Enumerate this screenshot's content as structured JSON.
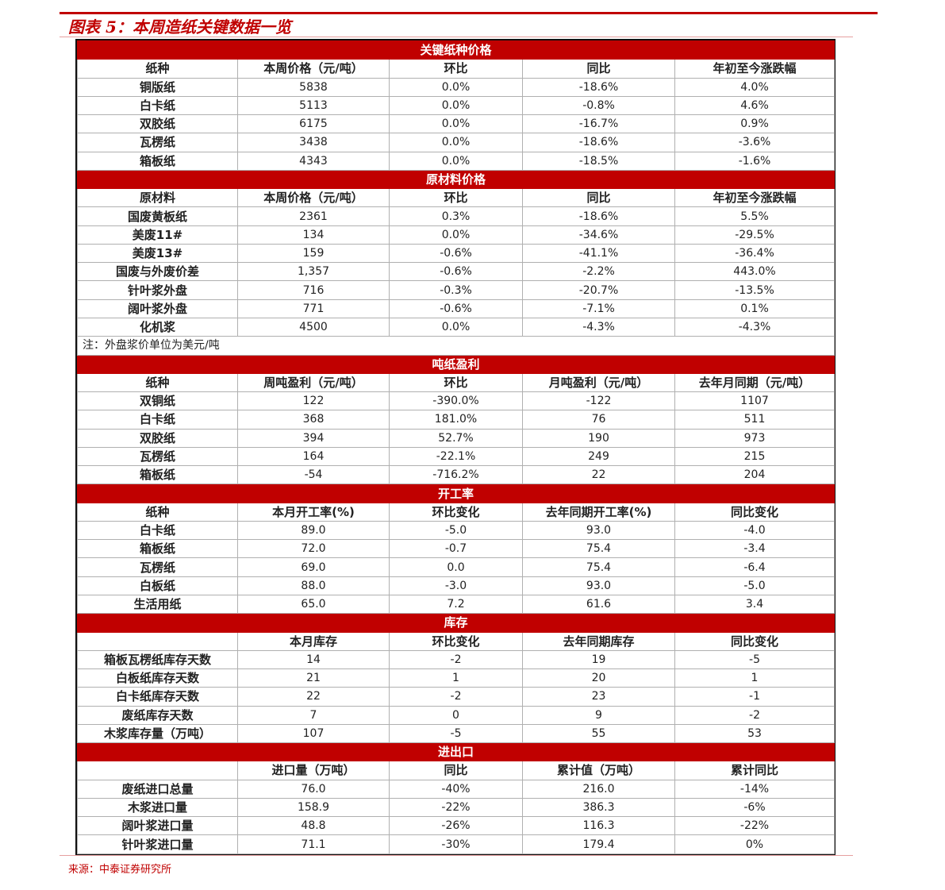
{
  "title": "图表 5：本周造纸关键数据一览",
  "source": "来源：中泰证券研究所",
  "colors": {
    "accent": "#c00000"
  },
  "sections": [
    {
      "title": "关键纸种价格",
      "headers": [
        "纸种",
        "本周价格（元/吨）",
        "环比",
        "同比",
        "年初至今涨跌幅"
      ],
      "rows": [
        [
          "铜版纸",
          "5838",
          "0.0%",
          "-18.6%",
          "4.0%"
        ],
        [
          "白卡纸",
          "5113",
          "0.0%",
          "-0.8%",
          "4.6%"
        ],
        [
          "双胶纸",
          "6175",
          "0.0%",
          "-16.7%",
          "0.9%"
        ],
        [
          "瓦楞纸",
          "3438",
          "0.0%",
          "-18.6%",
          "-3.6%"
        ],
        [
          "箱板纸",
          "4343",
          "0.0%",
          "-18.5%",
          "-1.6%"
        ]
      ]
    },
    {
      "title": "原材料价格",
      "headers": [
        "原材料",
        "本周价格（元/吨）",
        "环比",
        "同比",
        "年初至今涨跌幅"
      ],
      "rows": [
        [
          "国废黄板纸",
          "2361",
          "0.3%",
          "-18.6%",
          "5.5%"
        ],
        [
          "美废11#",
          "134",
          "0.0%",
          "-34.6%",
          "-29.5%"
        ],
        [
          "美废13#",
          "159",
          "-0.6%",
          "-41.1%",
          "-36.4%"
        ],
        [
          "国废与外废价差",
          "1,357",
          "-0.6%",
          "-2.2%",
          "443.0%"
        ],
        [
          "针叶浆外盘",
          "716",
          "-0.3%",
          "-20.7%",
          "-13.5%"
        ],
        [
          "阔叶浆外盘",
          "771",
          "-0.6%",
          "-7.1%",
          "0.1%"
        ],
        [
          "化机浆",
          "4500",
          "0.0%",
          "-4.3%",
          "-4.3%"
        ]
      ],
      "note": "注：外盘浆价单位为美元/吨"
    },
    {
      "title": "吨纸盈利",
      "headers": [
        "纸种",
        "周吨盈利（元/吨）",
        "环比",
        "月吨盈利（元/吨）",
        "去年月同期（元/吨）"
      ],
      "rows": [
        [
          "双铜纸",
          "122",
          "-390.0%",
          "-122",
          "1107"
        ],
        [
          "白卡纸",
          "368",
          "181.0%",
          "76",
          "511"
        ],
        [
          "双胶纸",
          "394",
          "52.7%",
          "190",
          "973"
        ],
        [
          "瓦楞纸",
          "164",
          "-22.1%",
          "249",
          "215"
        ],
        [
          "箱板纸",
          "-54",
          "-716.2%",
          "22",
          "204"
        ]
      ]
    },
    {
      "title": "开工率",
      "headers": [
        "纸种",
        "本月开工率(%)",
        "环比变化",
        "去年同期开工率(%)",
        "同比变化"
      ],
      "rows": [
        [
          "白卡纸",
          "89.0",
          "-5.0",
          "93.0",
          "-4.0"
        ],
        [
          "箱板纸",
          "72.0",
          "-0.7",
          "75.4",
          "-3.4"
        ],
        [
          "瓦楞纸",
          "69.0",
          "0.0",
          "75.4",
          "-6.4"
        ],
        [
          "白板纸",
          "88.0",
          "-3.0",
          "93.0",
          "-5.0"
        ],
        [
          "生活用纸",
          "65.0",
          "7.2",
          "61.6",
          "3.4"
        ]
      ]
    },
    {
      "title": "库存",
      "headers": [
        "",
        "本月库存",
        "环比变化",
        "去年同期库存",
        "同比变化"
      ],
      "rows": [
        [
          "箱板瓦楞纸库存天数",
          "14",
          "-2",
          "19",
          "-5"
        ],
        [
          "白板纸库存天数",
          "21",
          "1",
          "20",
          "1"
        ],
        [
          "白卡纸库存天数",
          "22",
          "-2",
          "23",
          "-1"
        ],
        [
          "废纸库存天数",
          "7",
          "0",
          "9",
          "-2"
        ],
        [
          "木浆库存量（万吨）",
          "107",
          "-5",
          "55",
          "53"
        ]
      ]
    },
    {
      "title": "进出口",
      "headers": [
        "",
        "进口量（万吨）",
        "同比",
        "累计值（万吨）",
        "累计同比"
      ],
      "rows": [
        [
          "废纸进口总量",
          "76.0",
          "-40%",
          "216.0",
          "-14%"
        ],
        [
          "木浆进口量",
          "158.9",
          "-22%",
          "386.3",
          "-6%"
        ],
        [
          "阔叶浆进口量",
          "48.8",
          "-26%",
          "116.3",
          "-22%"
        ],
        [
          "针叶浆进口量",
          "71.1",
          "-30%",
          "179.4",
          "0%"
        ]
      ]
    }
  ]
}
